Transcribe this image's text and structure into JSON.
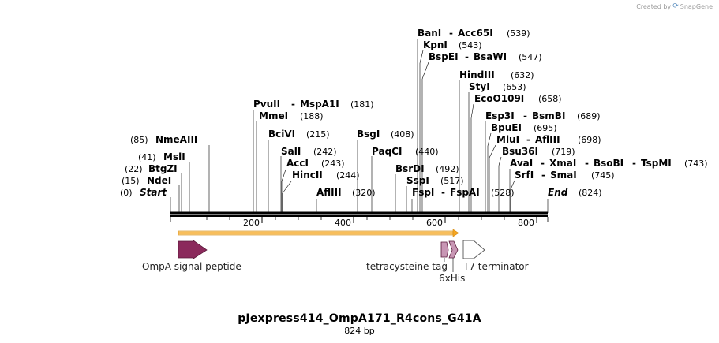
{
  "credit": {
    "prefix": "Created by",
    "brand": "SnapGene"
  },
  "plasmid": {
    "name": "pJexpress414_OmpA171_R4cons_G41A",
    "length_label": "824 bp",
    "length": 824
  },
  "scale": {
    "ticks": [
      "200",
      "400",
      "600",
      "800"
    ]
  },
  "ends": {
    "start": {
      "label": "Start",
      "pos": "(0)"
    },
    "end": {
      "label": "End",
      "pos": "(824)"
    }
  },
  "sites": [
    {
      "name": "NdeI",
      "pos": "(15)"
    },
    {
      "name": "BtgZI",
      "pos": "(22)"
    },
    {
      "name": "MslI",
      "pos": "(41)"
    },
    {
      "name": "NmeAIII",
      "pos": "(85)"
    },
    {
      "name": "PvuII",
      "name2": "MspA1I",
      "pos": "(181)"
    },
    {
      "name": "MmeI",
      "pos": "(188)"
    },
    {
      "name": "BciVI",
      "pos": "(215)"
    },
    {
      "name": "SalI",
      "pos": "(242)"
    },
    {
      "name": "AccI",
      "pos": "(243)"
    },
    {
      "name": "HincII",
      "pos": "(244)"
    },
    {
      "name": "AflIII",
      "pos": "(320)"
    },
    {
      "name": "BsgI",
      "pos": "(408)"
    },
    {
      "name": "PaqCI",
      "pos": "(440)"
    },
    {
      "name": "BsrDI",
      "pos": "(492)"
    },
    {
      "name": "SspI",
      "pos": "(517)"
    },
    {
      "name": "FspI",
      "name2": "FspAI",
      "pos": "(528)"
    },
    {
      "name": "BanI",
      "name2": "Acc65I",
      "pos": "(539)"
    },
    {
      "name": "KpnI",
      "pos": "(543)"
    },
    {
      "name": "BspEI",
      "name2": "BsaWI",
      "pos": "(547)"
    },
    {
      "name": "HindIII",
      "pos": "(632)"
    },
    {
      "name": "StyI",
      "pos": "(653)"
    },
    {
      "name": "EcoO109I",
      "pos": "(658)"
    },
    {
      "name": "Esp3I",
      "name2": "BsmBI",
      "pos": "(689)"
    },
    {
      "name": "BpuEI",
      "pos": "(695)"
    },
    {
      "name": "MluI",
      "name2": "AflIII",
      "pos": "(698)"
    },
    {
      "name": "Bsu36I",
      "pos": "(719)"
    },
    {
      "name": "AvaI",
      "name2": "XmaI",
      "name3": "BsoBI",
      "name4": "TspMI",
      "pos": "(743)"
    },
    {
      "name": "SrfI",
      "name2": "SmaI",
      "pos": "(745)"
    }
  ],
  "features": [
    {
      "name": "OmpA signal peptide",
      "color": "#8b2a5c"
    },
    {
      "name": "tetracysteine tag",
      "color": "#c896b4"
    },
    {
      "name": "6xHis",
      "color": "#c896b4"
    },
    {
      "name": "T7 terminator",
      "color": "#ffffff"
    }
  ],
  "orf": {
    "color": "#f5a623"
  }
}
